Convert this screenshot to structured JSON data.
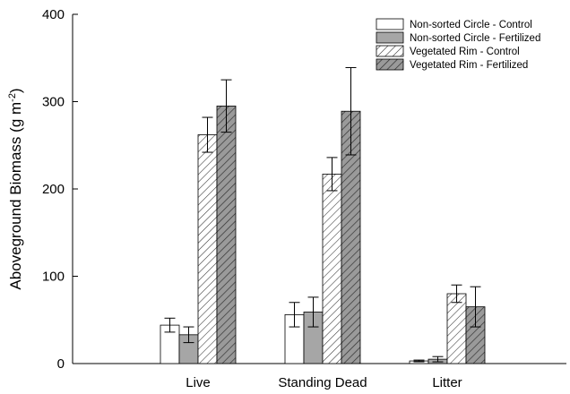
{
  "chart_data": {
    "type": "bar",
    "ylabel_main": "Aboveground Biomass (g m",
    "ylabel_sup": "-2",
    "ylabel_close": ")",
    "xlabel": "",
    "ylim": [
      0,
      400
    ],
    "yticks": [
      0,
      100,
      200,
      300,
      400
    ],
    "categories": [
      "Live",
      "Standing Dead",
      "Litter"
    ],
    "legend_position": "top-right",
    "grid": false,
    "series": [
      {
        "name": "Non-sorted Circle - Control",
        "values": [
          44,
          56,
          3
        ],
        "errors": [
          8,
          14,
          1
        ],
        "fill": "#ffffff",
        "pattern": "none"
      },
      {
        "name": "Non-sorted Circle - Fertilized",
        "values": [
          33,
          59,
          5
        ],
        "errors": [
          9,
          17,
          3
        ],
        "fill": "#a6a6a6",
        "pattern": "none"
      },
      {
        "name": "Vegetated Rim - Control",
        "values": [
          262,
          217,
          80
        ],
        "errors": [
          20,
          19,
          10
        ],
        "fill": "#ffffff",
        "pattern": "hatch-light"
      },
      {
        "name": "Vegetated Rim - Fertilized",
        "values": [
          295,
          289,
          65
        ],
        "errors": [
          30,
          50,
          23
        ],
        "fill": "#a6a6a6",
        "pattern": "hatch-dark"
      }
    ]
  }
}
